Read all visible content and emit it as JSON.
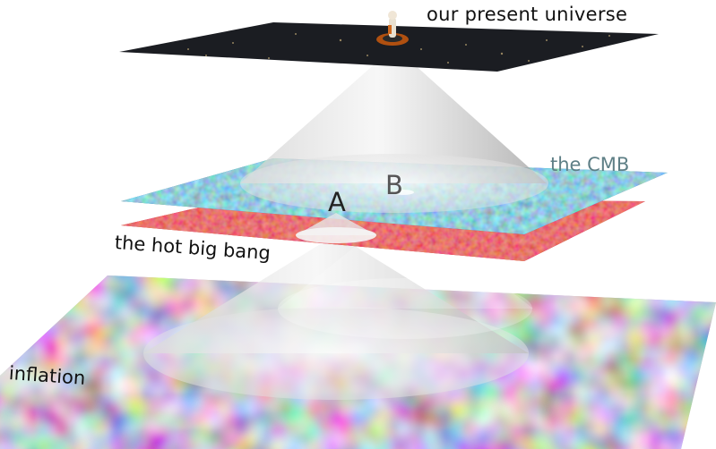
{
  "layers": {
    "present": {
      "label": "our present universe"
    },
    "cmb": {
      "label": "the CMB",
      "label_color": "#5e7f86"
    },
    "hot_big_bang": {
      "label": "the hot big bang"
    },
    "inflation": {
      "label": "inflation"
    }
  },
  "points": {
    "a": "A",
    "b": "B"
  },
  "colors": {
    "present_plane": "#1b1d22",
    "cmb_plane": "#3a7fa0",
    "hot_plane": "#d01818",
    "inflation_plane": "#c8b0c0",
    "cone": "#d9d9d9"
  }
}
